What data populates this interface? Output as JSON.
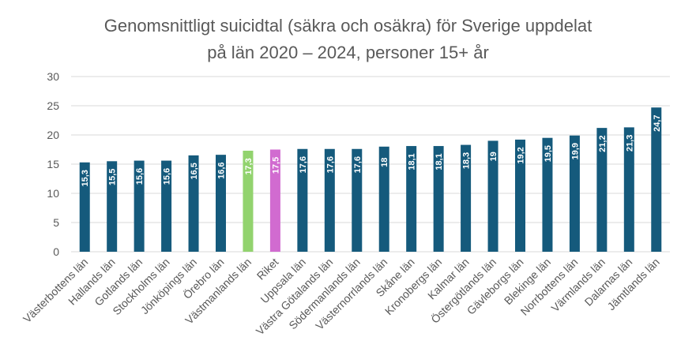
{
  "chart_data": {
    "type": "bar",
    "title": {
      "line1": "Genomsnittligt suicidtal (säkra och osäkra) för Sverige uppdelat",
      "line2": "på län 2020 – 2024, personer 15+ år"
    },
    "xlabel": "",
    "ylabel": "",
    "ylim": [
      0,
      30
    ],
    "yticks": [
      0,
      5,
      10,
      15,
      20,
      25,
      30
    ],
    "grid": true,
    "legend": "none",
    "categories": [
      "Västerbottens län",
      "Hallands län",
      "Gotlands län",
      "Stockholms län",
      "Jönköpings län",
      "Örebro län",
      "Västmanlands län",
      "Riket",
      "Uppsala län",
      "Västra Götalands län",
      "Södermanlands län",
      "Västernorrlands län",
      "Skåne län",
      "Kronobergs län",
      "Kalmar län",
      "Östergötlands län",
      "Gävleborgs län",
      "Blekinge län",
      "Norrbottens län",
      "Värmlands län",
      "Dalarnas län",
      "Jämtlands län"
    ],
    "values": [
      15.3,
      15.5,
      15.6,
      15.6,
      16.5,
      16.6,
      17.3,
      17.5,
      17.6,
      17.6,
      17.6,
      18,
      18.1,
      18.1,
      18.3,
      19,
      19.2,
      19.5,
      19.9,
      21.2,
      21.3,
      24.7
    ],
    "value_labels": [
      "15,3",
      "15,5",
      "15,6",
      "15,6",
      "16,5",
      "16,6",
      "17,3",
      "17,5",
      "17,6",
      "17,6",
      "17,6",
      "18",
      "18,1",
      "18,1",
      "18,3",
      "19",
      "19,2",
      "19,5",
      "19,9",
      "21,2",
      "21,3",
      "24,7"
    ],
    "colors": {
      "default": "#155A7C",
      "highlight": {
        "Västmanlands län": "#92D36E",
        "Riket": "#D16BD0"
      },
      "grid": "#D9D9D9",
      "axis_text": "#595959",
      "value_label": "#FFFFFF"
    }
  }
}
